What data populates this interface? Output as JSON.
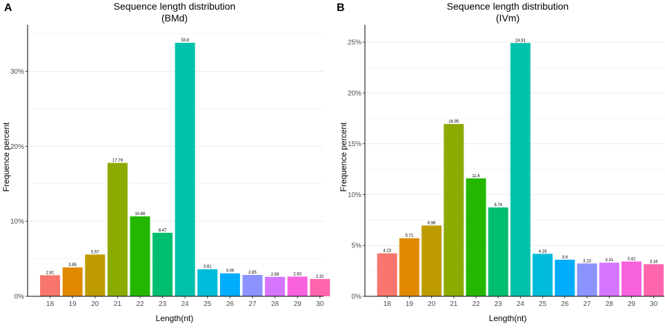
{
  "chart_data": [
    {
      "type": "bar",
      "panel": "A",
      "title": "Sequence length distribution",
      "subtitle": "(BMd)",
      "xlabel": "Length(nt)",
      "ylabel": "Frequence percent",
      "categories": [
        "18",
        "19",
        "20",
        "21",
        "22",
        "23",
        "24",
        "25",
        "26",
        "27",
        "28",
        "29",
        "30"
      ],
      "values": [
        2.81,
        3.85,
        5.57,
        17.79,
        10.66,
        8.47,
        33.8,
        3.61,
        3.06,
        2.85,
        2.59,
        2.63,
        2.31
      ],
      "value_labels": [
        "2.81",
        "3.85",
        "5.57",
        "17.79",
        "10.66",
        "8.47",
        "33.8",
        "3.61",
        "3.06",
        "2.85",
        "2.59",
        "2.63",
        "2.31"
      ],
      "ylim": [
        0,
        36.2
      ],
      "y_ticks": [
        0,
        10,
        20,
        30
      ],
      "y_tick_labels": [
        "0%",
        "10%",
        "20%",
        "30%"
      ],
      "minor_grid": [
        5,
        15,
        25,
        35
      ],
      "grid": true
    },
    {
      "type": "bar",
      "panel": "B",
      "title": "Sequence length distribution",
      "subtitle": "(IVm)",
      "xlabel": "Length(nt)",
      "ylabel": "Frequence percent",
      "categories": [
        "18",
        "19",
        "20",
        "21",
        "22",
        "23",
        "24",
        "25",
        "26",
        "27",
        "28",
        "29",
        "30"
      ],
      "values": [
        4.23,
        5.71,
        6.96,
        16.95,
        11.6,
        8.74,
        24.91,
        4.18,
        3.6,
        3.23,
        3.31,
        3.42,
        3.16
      ],
      "value_labels": [
        "4.23",
        "5.71",
        "6.96",
        "16.95",
        "11.6",
        "8.74",
        "24.91",
        "4.18",
        "3.6",
        "3.23",
        "3.31",
        "3.42",
        "3.16"
      ],
      "ylim": [
        0,
        26.7
      ],
      "y_ticks": [
        0,
        5,
        10,
        15,
        20,
        25
      ],
      "y_tick_labels": [
        "0%",
        "5%",
        "10%",
        "15%",
        "20%",
        "25%"
      ],
      "minor_grid": [
        2.5,
        7.5,
        12.5,
        17.5,
        22.5
      ],
      "grid": true
    }
  ],
  "colors": {
    "bars": [
      "#F8766D",
      "#E18A00",
      "#BE9C00",
      "#8CAB00",
      "#24B700",
      "#00BE70",
      "#00C1AB",
      "#00BBDA",
      "#00ACFC",
      "#8B93FF",
      "#D575FE",
      "#F962DD",
      "#FF65AC"
    ],
    "grid": "#ebebeb",
    "axis": "#000000"
  }
}
